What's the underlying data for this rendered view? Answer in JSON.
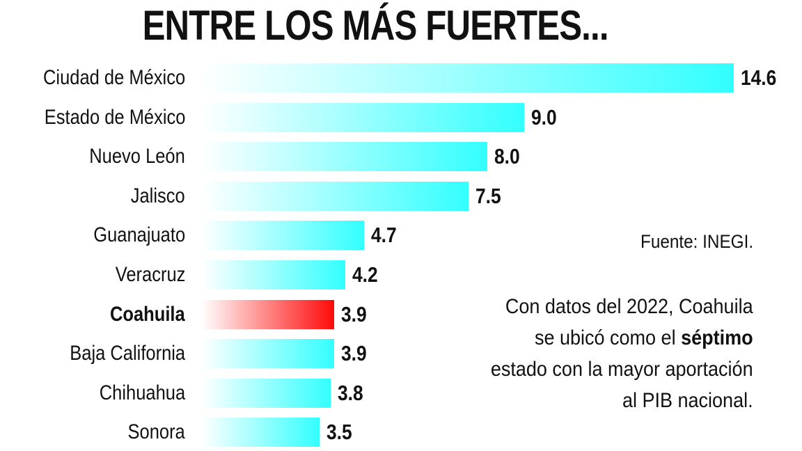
{
  "chart_data": {
    "type": "bar",
    "orientation": "horizontal",
    "title": "ENTRE LOS MÁS FUERTES...",
    "categories": [
      "Ciudad de México",
      "Estado de México",
      "Nuevo León",
      "Jalisco",
      "Guanajuato",
      "Veracruz",
      "Coahuila",
      "Baja California",
      "Chihuahua",
      "Sonora"
    ],
    "values": [
      14.6,
      9.0,
      8.0,
      7.5,
      4.7,
      4.2,
      3.9,
      3.9,
      3.8,
      3.5
    ],
    "value_labels": [
      "14.6",
      "9.0",
      "8.0",
      "7.5",
      "4.7",
      "4.2",
      "3.9",
      "3.9",
      "3.8",
      "3.5"
    ],
    "highlight": "Coahuila",
    "colors": {
      "bar": "#33ffff",
      "highlight": "#ff0a0a"
    },
    "grid": false,
    "source": "Fuente: INEGI.",
    "note": [
      "Con datos del 2022, Coahuila",
      "se ubicó como el ",
      "séptimo",
      "estado con la mayor aportación",
      "al PIB nacional."
    ]
  }
}
